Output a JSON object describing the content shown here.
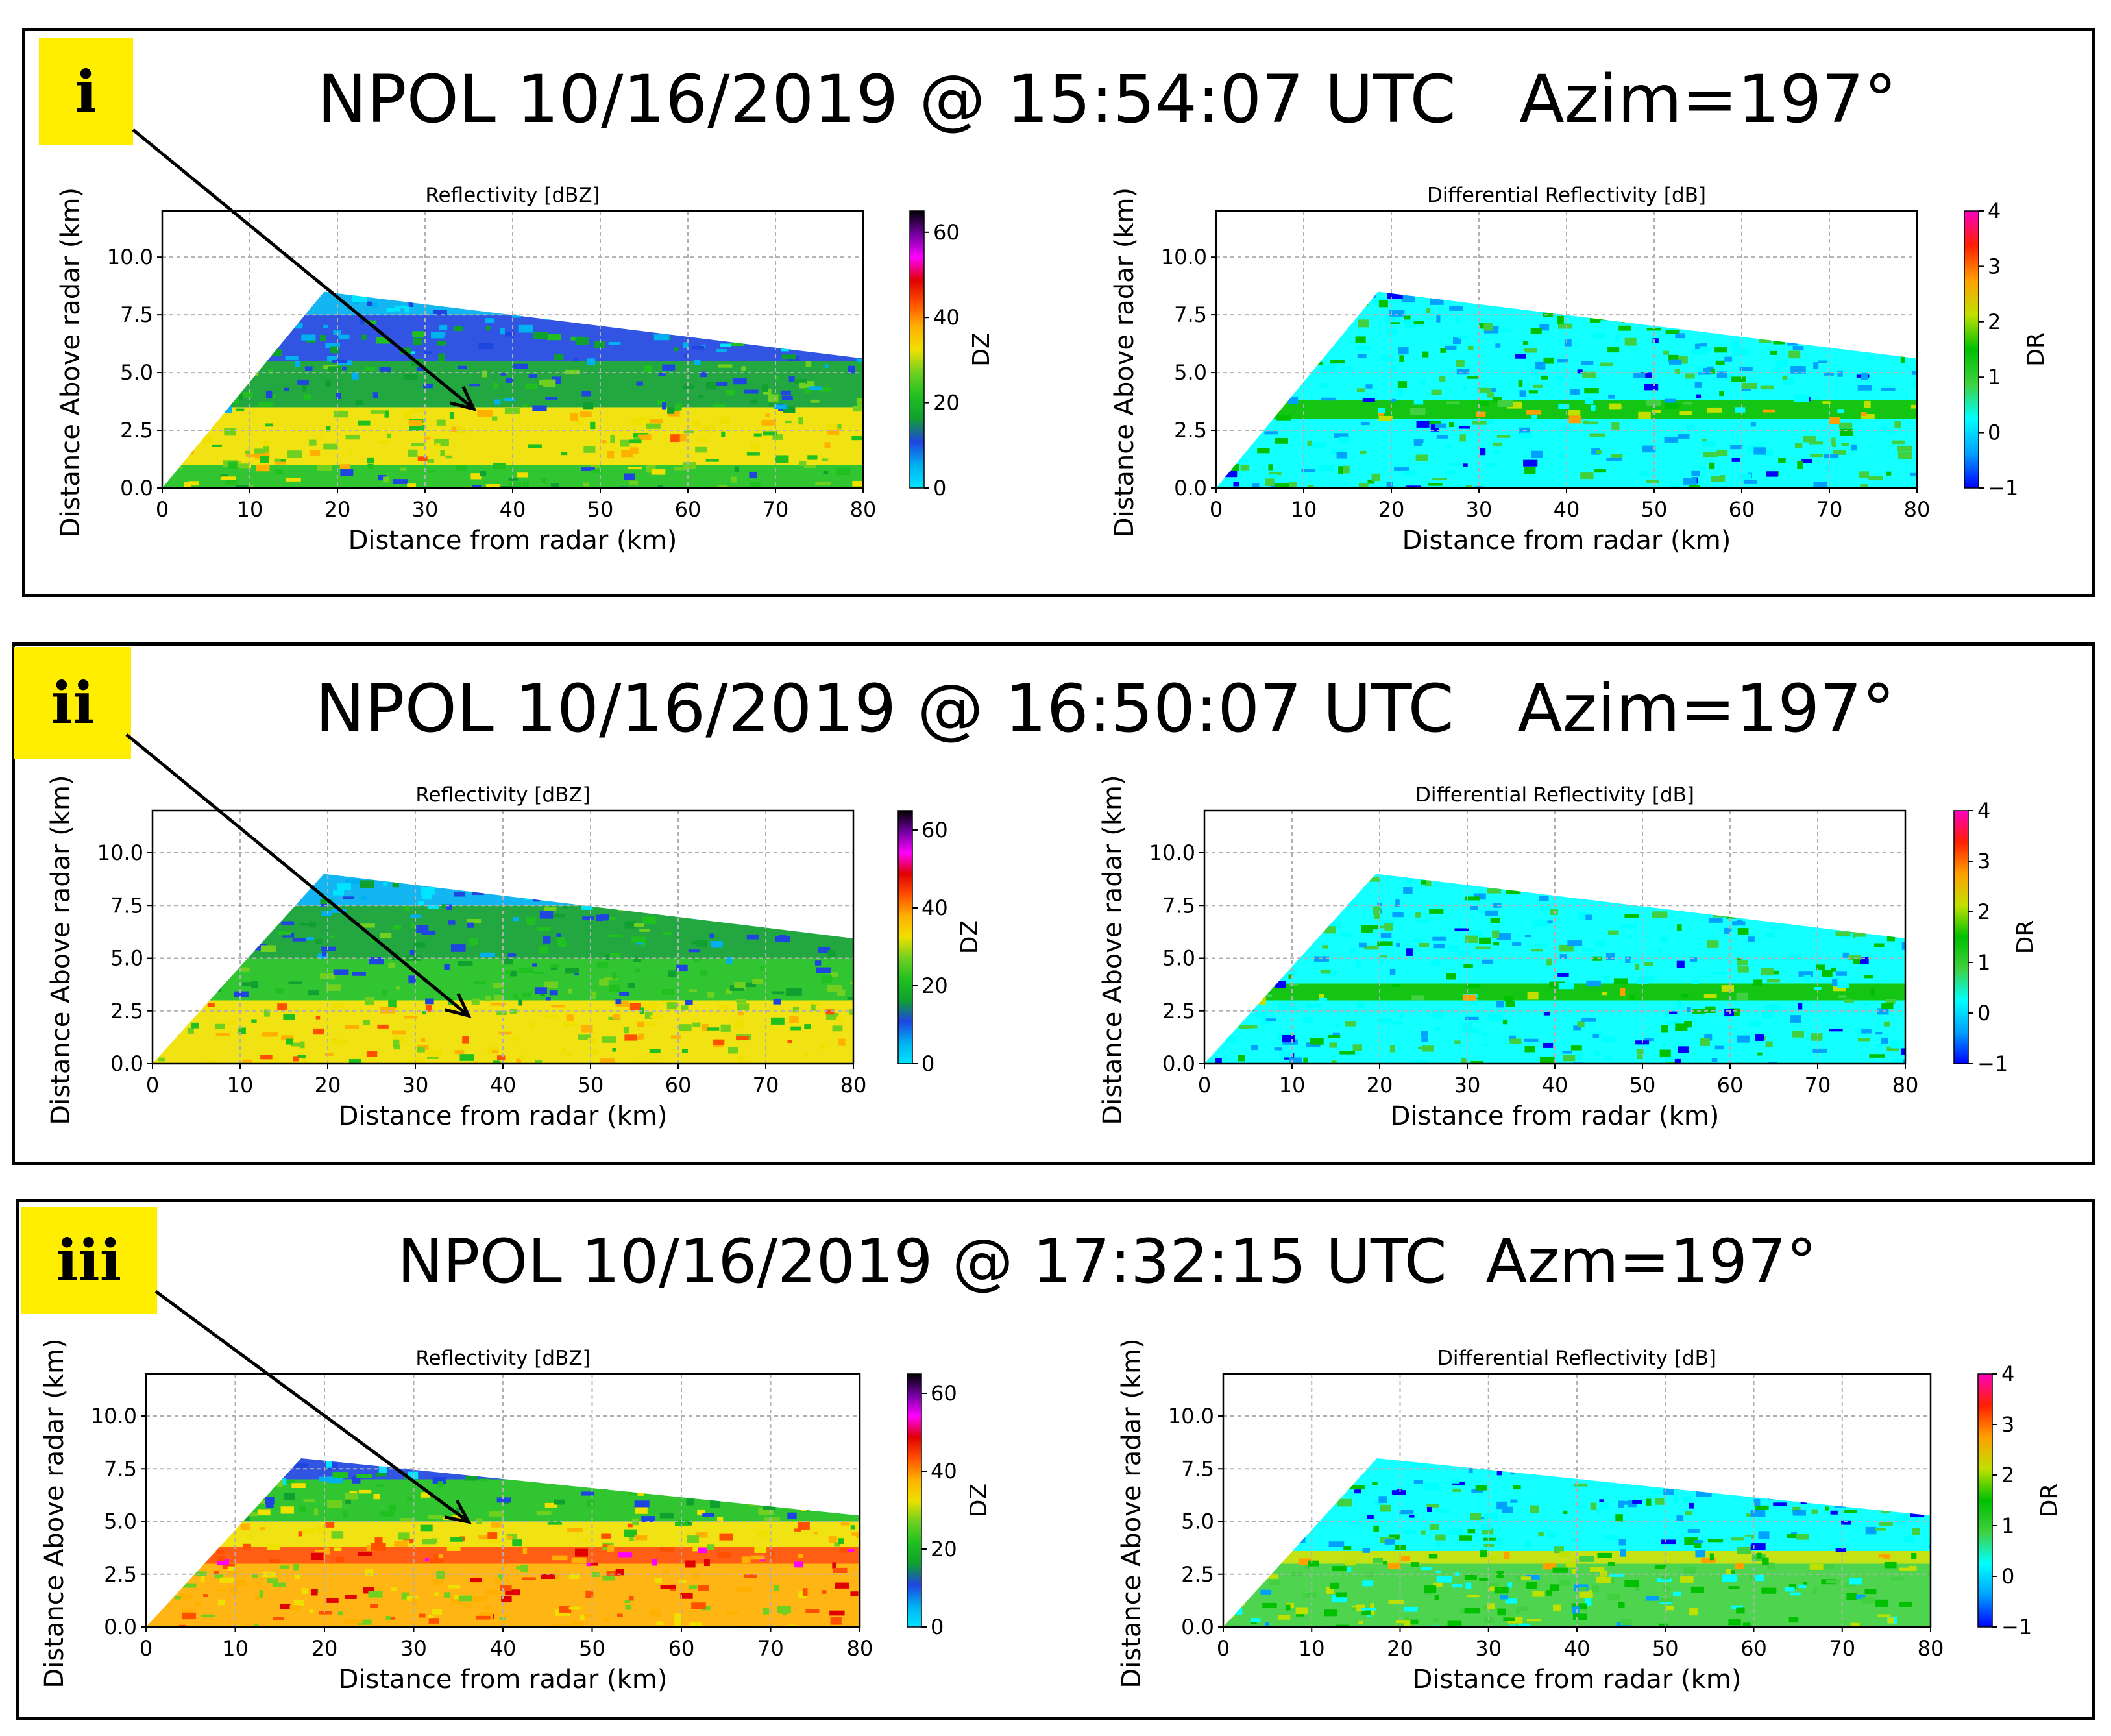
{
  "colors": {
    "yellow_badge": "#ffee00",
    "dz_colormap": [
      "#00e5ff",
      "#00b0f0",
      "#1f45e0",
      "#10a030",
      "#20c020",
      "#70d020",
      "#f0e000",
      "#ffb000",
      "#ff5000",
      "#e00000",
      "#ff00ff",
      "#7000a0",
      "#000000"
    ],
    "dr_colormap": [
      "#0000ff",
      "#00a0ff",
      "#00ffff",
      "#40d040",
      "#00c000",
      "#c0e000",
      "#ffa000",
      "#ff2000",
      "#ff00c0"
    ]
  },
  "panels": [
    {
      "label": "i",
      "title": "NPOL 10/16/2019 @ 15:54:07 UTC   Azim=197°",
      "chart_data": [
        {
          "type": "heatmap",
          "title": "Reflectivity [dBZ]",
          "xlabel": "Distance from radar (km)",
          "ylabel": "Distance Above radar (km)",
          "xlim": [
            0,
            80
          ],
          "ylim": [
            0,
            12
          ],
          "xticks": [
            "0",
            "10",
            "20",
            "30",
            "40",
            "50",
            "60",
            "70",
            "80"
          ],
          "yticks": [
            "0.0",
            "2.5",
            "5.0",
            "7.5",
            "10.0"
          ],
          "grid": true,
          "colorbar": {
            "label": "DZ",
            "range": [
              0,
              65
            ],
            "ticks": [
              "0",
              "20",
              "40",
              "60"
            ]
          },
          "echo_top_km": 8.5,
          "bands": [
            {
              "from_km": 0.0,
              "to_km": 1.0,
              "dbz": 22
            },
            {
              "from_km": 1.0,
              "to_km": 3.5,
              "dbz": 30
            },
            {
              "from_km": 3.5,
              "to_km": 5.5,
              "dbz": 18
            },
            {
              "from_km": 5.5,
              "to_km": 7.5,
              "dbz": 12
            },
            {
              "from_km": 7.5,
              "to_km": 8.5,
              "dbz": 4
            }
          ]
        },
        {
          "type": "heatmap",
          "title": "Differential Reflectivity [dB]",
          "xlabel": "Distance from radar (km)",
          "ylabel": "Distance Above radar (km)",
          "xlim": [
            0,
            80
          ],
          "ylim": [
            0,
            12
          ],
          "xticks": [
            "0",
            "10",
            "20",
            "30",
            "40",
            "50",
            "60",
            "70",
            "80"
          ],
          "yticks": [
            "0.0",
            "2.5",
            "5.0",
            "7.5",
            "10.0"
          ],
          "grid": true,
          "colorbar": {
            "label": "DR",
            "range": [
              -1,
              4
            ],
            "ticks": [
              "−1",
              "0",
              "1",
              "2",
              "3",
              "4"
            ]
          },
          "echo_top_km": 8.5,
          "bands": [
            {
              "from_km": 0.0,
              "to_km": 3.0,
              "zdr": 0.3
            },
            {
              "from_km": 3.0,
              "to_km": 3.8,
              "zdr": 1.5
            },
            {
              "from_km": 3.8,
              "to_km": 8.5,
              "zdr": 0.5
            }
          ]
        }
      ]
    },
    {
      "label": "ii",
      "title": "NPOL 10/16/2019 @ 16:50:07 UTC   Azim=197°",
      "chart_data": [
        {
          "type": "heatmap",
          "title": "Reflectivity [dBZ]",
          "xlabel": "Distance from radar (km)",
          "ylabel": "Distance Above radar (km)",
          "xlim": [
            0,
            80
          ],
          "ylim": [
            0,
            12
          ],
          "xticks": [
            "0",
            "10",
            "20",
            "30",
            "40",
            "50",
            "60",
            "70",
            "80"
          ],
          "yticks": [
            "0.0",
            "2.5",
            "5.0",
            "7.5",
            "10.0"
          ],
          "grid": true,
          "colorbar": {
            "label": "DZ",
            "range": [
              0,
              65
            ],
            "ticks": [
              "0",
              "20",
              "40",
              "60"
            ]
          },
          "echo_top_km": 9.0,
          "bands": [
            {
              "from_km": 0.0,
              "to_km": 3.0,
              "dbz": 33
            },
            {
              "from_km": 3.0,
              "to_km": 5.0,
              "dbz": 20
            },
            {
              "from_km": 5.0,
              "to_km": 7.5,
              "dbz": 16
            },
            {
              "from_km": 7.5,
              "to_km": 9.0,
              "dbz": 6
            }
          ]
        },
        {
          "type": "heatmap",
          "title": "Differential Reflectivity [dB]",
          "xlabel": "Distance from radar (km)",
          "ylabel": "Distance Above radar (km)",
          "xlim": [
            0,
            80
          ],
          "ylim": [
            0,
            12
          ],
          "xticks": [
            "0",
            "10",
            "20",
            "30",
            "40",
            "50",
            "60",
            "70",
            "80"
          ],
          "yticks": [
            "0.0",
            "2.5",
            "5.0",
            "7.5",
            "10.0"
          ],
          "grid": true,
          "colorbar": {
            "label": "DR",
            "range": [
              -1,
              4
            ],
            "ticks": [
              "−1",
              "0",
              "1",
              "2",
              "3",
              "4"
            ]
          },
          "echo_top_km": 9.0,
          "bands": [
            {
              "from_km": 0.0,
              "to_km": 3.0,
              "zdr": 0.4
            },
            {
              "from_km": 3.0,
              "to_km": 3.8,
              "zdr": 1.3
            },
            {
              "from_km": 3.8,
              "to_km": 9.0,
              "zdr": 0.5
            }
          ]
        }
      ]
    },
    {
      "label": "iii",
      "title": "NPOL 10/16/2019 @ 17:32:15 UTC  Azm=197°",
      "chart_data": [
        {
          "type": "heatmap",
          "title": "Reflectivity [dBZ]",
          "xlabel": "Distance from radar (km)",
          "ylabel": "Distance Above radar (km)",
          "xlim": [
            0,
            80
          ],
          "ylim": [
            0,
            12
          ],
          "xticks": [
            "0",
            "10",
            "20",
            "30",
            "40",
            "50",
            "60",
            "70",
            "80"
          ],
          "yticks": [
            "0.0",
            "2.5",
            "5.0",
            "7.5",
            "10.0"
          ],
          "grid": true,
          "colorbar": {
            "label": "DZ",
            "range": [
              0,
              65
            ],
            "ticks": [
              "0",
              "20",
              "40",
              "60"
            ]
          },
          "echo_top_km": 8.0,
          "bands": [
            {
              "from_km": 0.0,
              "to_km": 3.0,
              "dbz": 37
            },
            {
              "from_km": 3.0,
              "to_km": 3.8,
              "dbz": 45
            },
            {
              "from_km": 3.8,
              "to_km": 5.0,
              "dbz": 33
            },
            {
              "from_km": 5.0,
              "to_km": 7.0,
              "dbz": 22
            },
            {
              "from_km": 7.0,
              "to_km": 8.0,
              "dbz": 10
            }
          ]
        },
        {
          "type": "heatmap",
          "title": "Differential Reflectivity [dB]",
          "xlabel": "Distance from radar (km)",
          "ylabel": "Distance Above radar (km)",
          "xlim": [
            0,
            80
          ],
          "ylim": [
            0,
            12
          ],
          "xticks": [
            "0",
            "10",
            "20",
            "30",
            "40",
            "50",
            "60",
            "70",
            "80"
          ],
          "yticks": [
            "0.0",
            "2.5",
            "5.0",
            "7.5",
            "10.0"
          ],
          "grid": true,
          "colorbar": {
            "label": "DR",
            "range": [
              -1,
              4
            ],
            "ticks": [
              "−1",
              "0",
              "1",
              "2",
              "3",
              "4"
            ]
          },
          "echo_top_km": 8.0,
          "bands": [
            {
              "from_km": 0.0,
              "to_km": 3.0,
              "zdr": 1.0
            },
            {
              "from_km": 3.0,
              "to_km": 3.6,
              "zdr": 2.0
            },
            {
              "from_km": 3.6,
              "to_km": 8.0,
              "zdr": 0.3
            }
          ]
        }
      ]
    }
  ]
}
